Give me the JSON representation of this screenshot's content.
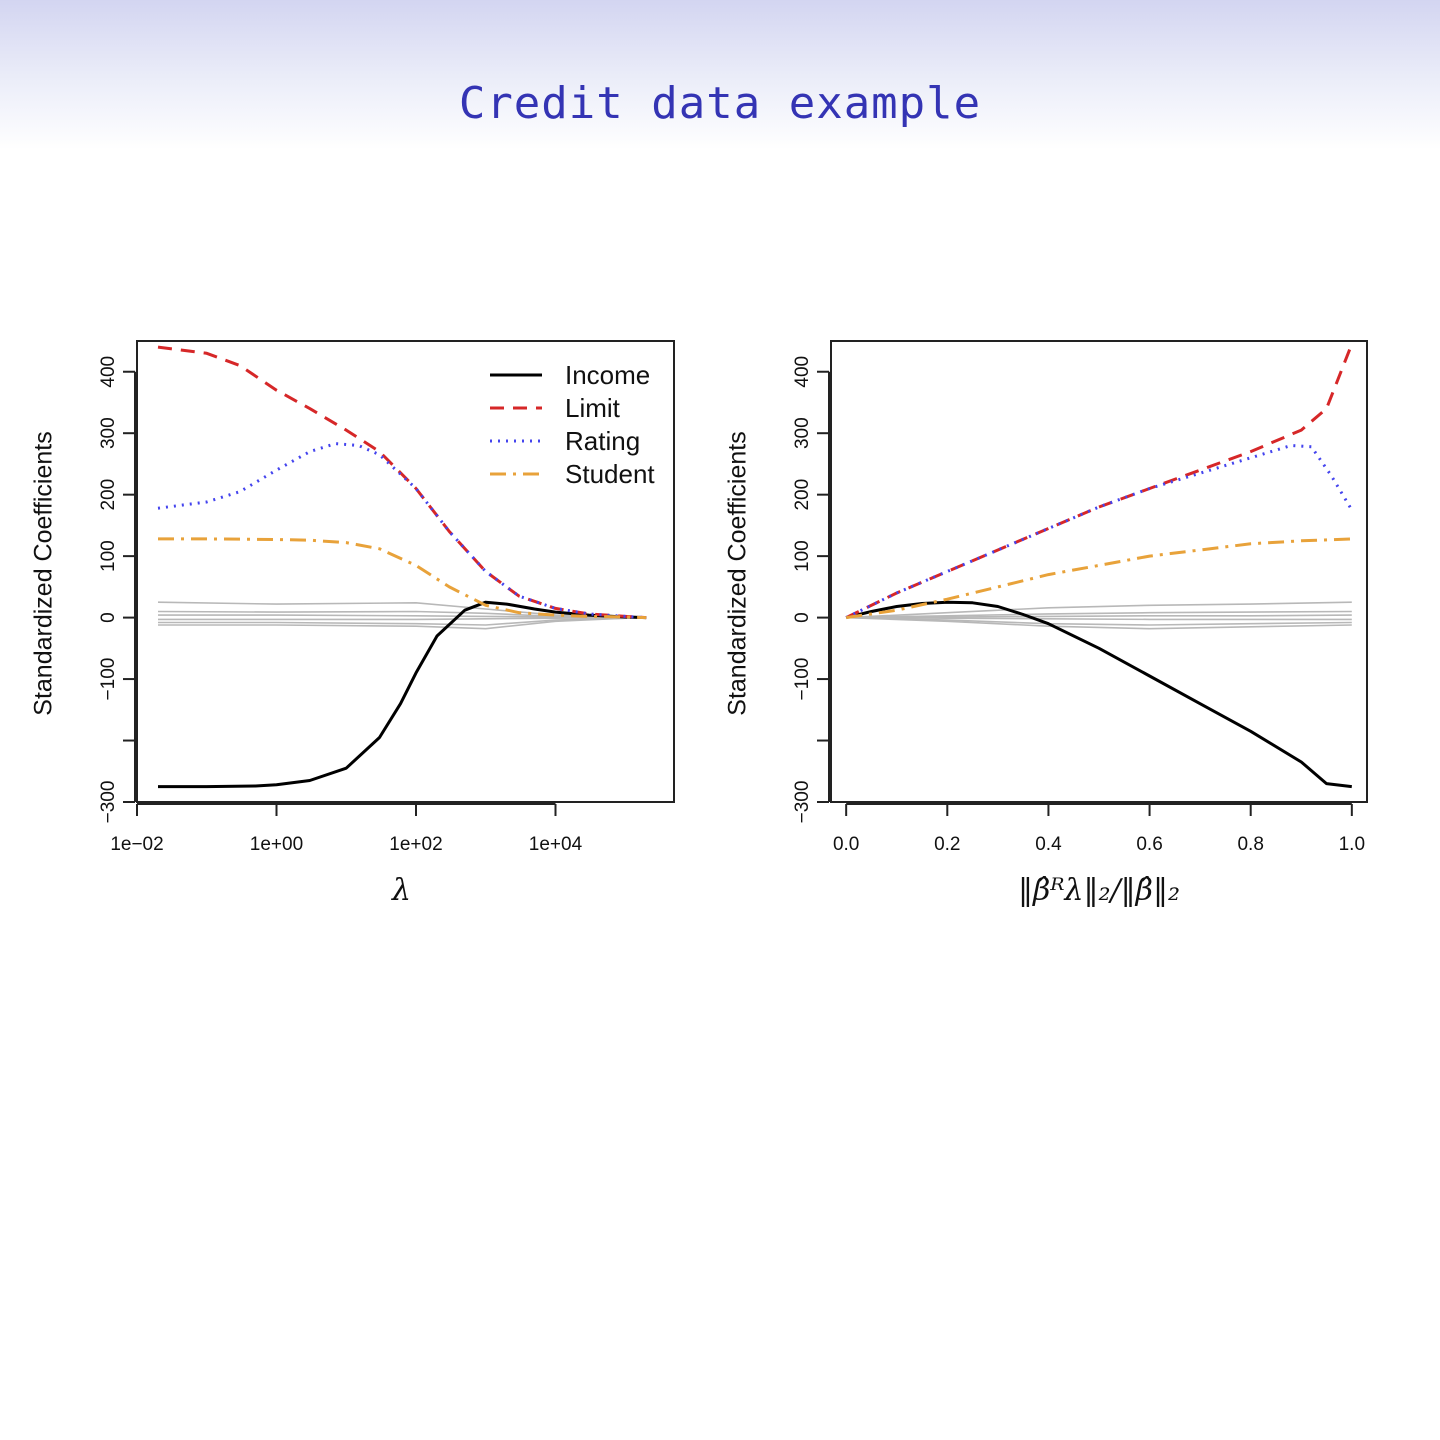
{
  "slide": {
    "title": "Credit data example"
  },
  "chart_data": [
    {
      "type": "line",
      "xscale": "log10",
      "xlim": [
        0.01,
        500000
      ],
      "ylim": [
        -300,
        450
      ],
      "xlabel": "λ",
      "ylabel": "Standardized Coefficients",
      "xticks": [
        0.01,
        1,
        100,
        10000
      ],
      "xtick_labels": [
        "1e−02",
        "1e+00",
        "1e+02",
        "1e+04"
      ],
      "yticks": [
        -300,
        -200,
        -100,
        0,
        100,
        200,
        300,
        400
      ],
      "ytick_labels": [
        "−300",
        "",
        "−100",
        "0",
        "100",
        "200",
        "300",
        "400"
      ],
      "legend": {
        "position": "top-right"
      },
      "grid": false,
      "series": [
        {
          "name": "Income",
          "style": "solid",
          "color": "#000000",
          "x": [
            0.02,
            0.1,
            0.5,
            1,
            3,
            10,
            30,
            60,
            100,
            200,
            500,
            1000,
            2000,
            5000,
            10000,
            30000,
            100000,
            200000
          ],
          "y": [
            -275,
            -275,
            -274,
            -272,
            -265,
            -245,
            -195,
            -140,
            -90,
            -30,
            12,
            25,
            22,
            14,
            9,
            4,
            1,
            0
          ]
        },
        {
          "name": "Limit",
          "style": "dashed",
          "color": "#d62728",
          "x": [
            0.02,
            0.1,
            0.3,
            1,
            3,
            10,
            30,
            100,
            300,
            1000,
            3000,
            10000,
            30000,
            100000,
            200000
          ],
          "y": [
            440,
            430,
            410,
            370,
            340,
            305,
            270,
            210,
            140,
            75,
            35,
            15,
            6,
            2,
            0
          ]
        },
        {
          "name": "Rating",
          "style": "dotted",
          "color": "#4444ee",
          "x": [
            0.02,
            0.1,
            0.3,
            1,
            3,
            7,
            15,
            30,
            100,
            300,
            1000,
            3000,
            10000,
            30000,
            100000,
            200000
          ],
          "y": [
            178,
            188,
            205,
            240,
            270,
            283,
            280,
            265,
            210,
            140,
            75,
            35,
            15,
            6,
            2,
            0
          ]
        },
        {
          "name": "Student",
          "style": "dashdot",
          "color": "#e8a23a",
          "x": [
            0.02,
            0.1,
            1,
            3,
            10,
            30,
            100,
            300,
            1000,
            3000,
            10000,
            30000,
            100000,
            200000
          ],
          "y": [
            128,
            128,
            127,
            126,
            122,
            112,
            85,
            50,
            20,
            8,
            4,
            2,
            1,
            0
          ]
        }
      ],
      "other_series": [
        {
          "x": [
            0.02,
            1,
            100,
            1000,
            10000,
            100000,
            200000
          ],
          "y": [
            25,
            22,
            24,
            14,
            4,
            1,
            0
          ]
        },
        {
          "x": [
            0.02,
            1,
            100,
            1000,
            10000,
            100000,
            200000
          ],
          "y": [
            10,
            9,
            10,
            7,
            2,
            0,
            0
          ]
        },
        {
          "x": [
            0.02,
            1,
            100,
            1000,
            10000,
            100000,
            200000
          ],
          "y": [
            4,
            4,
            3,
            2,
            1,
            0,
            0
          ]
        },
        {
          "x": [
            0.02,
            1,
            100,
            1000,
            10000,
            100000,
            200000
          ],
          "y": [
            -3,
            -3,
            -3,
            -2,
            -1,
            0,
            0
          ]
        },
        {
          "x": [
            0.02,
            1,
            100,
            1000,
            10000,
            100000,
            200000
          ],
          "y": [
            -8,
            -8,
            -10,
            -12,
            -4,
            -1,
            0
          ]
        },
        {
          "x": [
            0.02,
            1,
            100,
            1000,
            10000,
            100000,
            200000
          ],
          "y": [
            -12,
            -12,
            -14,
            -18,
            -6,
            -1,
            0
          ]
        }
      ]
    },
    {
      "type": "line",
      "xscale": "linear",
      "xlim": [
        -0.03,
        1.03
      ],
      "ylim": [
        -300,
        450
      ],
      "xlabel": "‖β̂ᴿλ‖₂/‖β̂‖₂",
      "ylabel": "Standardized Coefficients",
      "xticks": [
        0.0,
        0.2,
        0.4,
        0.6,
        0.8,
        1.0
      ],
      "xtick_labels": [
        "0.0",
        "0.2",
        "0.4",
        "0.6",
        "0.8",
        "1.0"
      ],
      "yticks": [
        -300,
        -200,
        -100,
        0,
        100,
        200,
        300,
        400
      ],
      "ytick_labels": [
        "−300",
        "",
        "−100",
        "0",
        "100",
        "200",
        "300",
        "400"
      ],
      "legend": {
        "position": "none"
      },
      "grid": false,
      "series": [
        {
          "name": "Income",
          "style": "solid",
          "color": "#000000",
          "x": [
            0,
            0.05,
            0.1,
            0.15,
            0.2,
            0.25,
            0.3,
            0.35,
            0.4,
            0.5,
            0.6,
            0.7,
            0.8,
            0.9,
            0.95,
            1.0
          ],
          "y": [
            0,
            10,
            18,
            23,
            25,
            24,
            18,
            5,
            -10,
            -50,
            -95,
            -140,
            -185,
            -235,
            -270,
            -275
          ]
        },
        {
          "name": "Limit",
          "style": "dashed",
          "color": "#d62728",
          "x": [
            0,
            0.1,
            0.2,
            0.3,
            0.4,
            0.5,
            0.6,
            0.7,
            0.8,
            0.9,
            0.95,
            1.0
          ],
          "y": [
            0,
            40,
            75,
            110,
            145,
            180,
            210,
            240,
            270,
            305,
            340,
            445
          ]
        },
        {
          "name": "Rating",
          "style": "dotted",
          "color": "#4444ee",
          "x": [
            0,
            0.1,
            0.2,
            0.3,
            0.4,
            0.5,
            0.6,
            0.7,
            0.8,
            0.88,
            0.92,
            0.96,
            1.0
          ],
          "y": [
            0,
            40,
            75,
            110,
            145,
            180,
            210,
            235,
            260,
            280,
            278,
            230,
            175
          ]
        },
        {
          "name": "Student",
          "style": "dashdot",
          "color": "#e8a23a",
          "x": [
            0,
            0.1,
            0.2,
            0.3,
            0.4,
            0.5,
            0.6,
            0.7,
            0.8,
            0.9,
            1.0
          ],
          "y": [
            0,
            12,
            30,
            50,
            70,
            85,
            100,
            110,
            120,
            125,
            128
          ]
        }
      ],
      "other_series": [
        {
          "x": [
            0,
            0.2,
            0.4,
            0.6,
            0.8,
            1.0
          ],
          "y": [
            0,
            8,
            16,
            20,
            22,
            25
          ]
        },
        {
          "x": [
            0,
            0.2,
            0.4,
            0.6,
            0.8,
            1.0
          ],
          "y": [
            0,
            3,
            6,
            8,
            9,
            10
          ]
        },
        {
          "x": [
            0,
            0.2,
            0.4,
            0.6,
            0.8,
            1.0
          ],
          "y": [
            0,
            1,
            2,
            3,
            3,
            4
          ]
        },
        {
          "x": [
            0,
            0.2,
            0.4,
            0.6,
            0.8,
            1.0
          ],
          "y": [
            0,
            -1,
            -2,
            -3,
            -3,
            -3
          ]
        },
        {
          "x": [
            0,
            0.2,
            0.4,
            0.6,
            0.8,
            1.0
          ],
          "y": [
            0,
            -4,
            -10,
            -12,
            -10,
            -8
          ]
        },
        {
          "x": [
            0,
            0.2,
            0.4,
            0.6,
            0.8,
            1.0
          ],
          "y": [
            0,
            -6,
            -14,
            -18,
            -15,
            -12
          ]
        }
      ]
    }
  ]
}
